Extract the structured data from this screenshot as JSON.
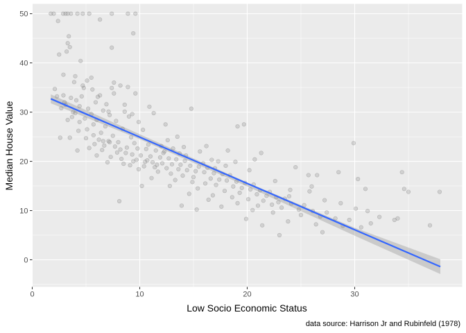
{
  "chart_data": {
    "type": "scatter",
    "title": "",
    "xlabel": "Low Socio Economic Status",
    "ylabel": "Median House Value",
    "caption": "data source: Harrison Jr and Rubinfeld (1978)",
    "xlim": [
      0,
      40
    ],
    "ylim": [
      -5.5,
      52
    ],
    "xticks": [
      0,
      10,
      20,
      30
    ],
    "yticks": [
      0,
      10,
      20,
      30,
      40,
      50
    ],
    "grid": true,
    "legend": "none",
    "colors": {
      "panel_background": "#ebebeb",
      "grid_major": "#ffffff",
      "point": "#7f7f7f",
      "fit_line": "#3366ff",
      "confidence_band": "#999999"
    },
    "fit_line": {
      "x": [
        1.73,
        37.97
      ],
      "y": [
        32.7,
        -1.4
      ],
      "se_band": {
        "x": [
          1.73,
          10,
          20,
          30,
          37.97
        ],
        "lower": [
          31.8,
          24.5,
          14.9,
          4.9,
          -2.9
        ],
        "upper": [
          33.6,
          25.5,
          15.7,
          6.5,
          0.1
        ]
      }
    },
    "points": [
      [
        1.73,
        50
      ],
      [
        2.0,
        50
      ],
      [
        2.87,
        50
      ],
      [
        3.1,
        50
      ],
      [
        3.3,
        50
      ],
      [
        3.6,
        50
      ],
      [
        4.2,
        50
      ],
      [
        4.7,
        50
      ],
      [
        5.3,
        50
      ],
      [
        7.4,
        50
      ],
      [
        8.9,
        50
      ],
      [
        9.6,
        50
      ],
      [
        2.4,
        48.5
      ],
      [
        3.4,
        45.4
      ],
      [
        3.3,
        44.0
      ],
      [
        3.5,
        43.2
      ],
      [
        3.2,
        42.3
      ],
      [
        7.4,
        43.1
      ],
      [
        2.5,
        41.7
      ],
      [
        6.3,
        48.8
      ],
      [
        9.4,
        46.0
      ],
      [
        4.5,
        40.4
      ],
      [
        2.9,
        37.6
      ],
      [
        4.0,
        37.3
      ],
      [
        5.1,
        36.4
      ],
      [
        7.6,
        36.0
      ],
      [
        8.2,
        35.4
      ],
      [
        4.8,
        34.9
      ],
      [
        2.1,
        34.7
      ],
      [
        5.6,
        34.6
      ],
      [
        7.4,
        34.9
      ],
      [
        9.6,
        33.8
      ],
      [
        2.9,
        33.4
      ],
      [
        4.6,
        33.2
      ],
      [
        6.1,
        33.1
      ],
      [
        3.6,
        32.9
      ],
      [
        4.1,
        32.4
      ],
      [
        5.9,
        32.0
      ],
      [
        6.9,
        31.6
      ],
      [
        3.1,
        31.5
      ],
      [
        4.4,
        31.2
      ],
      [
        2.7,
        30.8
      ],
      [
        5.2,
        30.7
      ],
      [
        6.6,
        30.3
      ],
      [
        8.6,
        30.1
      ],
      [
        4.0,
        29.8
      ],
      [
        5.5,
        29.6
      ],
      [
        7.2,
        29.4
      ],
      [
        9.0,
        29.1
      ],
      [
        3.7,
        29.0
      ],
      [
        4.9,
        28.7
      ],
      [
        6.0,
        28.4
      ],
      [
        7.8,
        28.2
      ],
      [
        9.9,
        28.0
      ],
      [
        3.3,
        28.4
      ],
      [
        5.7,
        27.5
      ],
      [
        6.8,
        27.1
      ],
      [
        8.4,
        26.6
      ],
      [
        10.3,
        26.4
      ],
      [
        4.3,
        26.2
      ],
      [
        6.4,
        25.8
      ],
      [
        7.5,
        25.2
      ],
      [
        9.2,
        24.9
      ],
      [
        5.0,
        24.7
      ],
      [
        6.2,
        24.4
      ],
      [
        7.1,
        24.1
      ],
      [
        8.0,
        23.9
      ],
      [
        9.5,
        23.7
      ],
      [
        10.8,
        23.4
      ],
      [
        3.5,
        24.8
      ],
      [
        5.8,
        23.5
      ],
      [
        6.7,
        23.2
      ],
      [
        7.7,
        23.0
      ],
      [
        8.8,
        22.8
      ],
      [
        9.8,
        22.6
      ],
      [
        10.6,
        22.5
      ],
      [
        11.5,
        22.2
      ],
      [
        12.3,
        22.0
      ],
      [
        5.3,
        22.7
      ],
      [
        6.5,
        22.3
      ],
      [
        7.9,
        21.8
      ],
      [
        8.7,
        21.7
      ],
      [
        9.3,
        21.4
      ],
      [
        10.1,
        21.2
      ],
      [
        11.0,
        21.0
      ],
      [
        11.9,
        20.8
      ],
      [
        12.7,
        20.6
      ],
      [
        13.4,
        20.4
      ],
      [
        14.2,
        20.1
      ],
      [
        6.0,
        21.2
      ],
      [
        7.3,
        20.9
      ],
      [
        8.3,
        20.5
      ],
      [
        9.7,
        20.3
      ],
      [
        10.5,
        19.9
      ],
      [
        11.2,
        19.8
      ],
      [
        12.1,
        19.6
      ],
      [
        13.0,
        19.4
      ],
      [
        13.8,
        19.3
      ],
      [
        14.7,
        19.1
      ],
      [
        15.5,
        18.9
      ],
      [
        16.3,
        18.7
      ],
      [
        7.0,
        19.8
      ],
      [
        8.5,
        19.5
      ],
      [
        9.1,
        19.2
      ],
      [
        10.4,
        19.0
      ],
      [
        11.4,
        18.8
      ],
      [
        12.5,
        18.6
      ],
      [
        13.6,
        18.4
      ],
      [
        14.4,
        18.2
      ],
      [
        15.2,
        18.0
      ],
      [
        16.0,
        17.8
      ],
      [
        16.9,
        17.6
      ],
      [
        17.7,
        17.4
      ],
      [
        18.4,
        17.2
      ],
      [
        9.9,
        18.4
      ],
      [
        11.7,
        17.9
      ],
      [
        12.9,
        17.5
      ],
      [
        14.0,
        17.1
      ],
      [
        15.0,
        16.8
      ],
      [
        16.6,
        16.5
      ],
      [
        17.4,
        16.3
      ],
      [
        18.1,
        16.1
      ],
      [
        19.0,
        15.9
      ],
      [
        19.8,
        15.6
      ],
      [
        20.6,
        15.3
      ],
      [
        11.1,
        16.6
      ],
      [
        13.3,
        16.2
      ],
      [
        14.9,
        15.8
      ],
      [
        16.1,
        15.5
      ],
      [
        17.1,
        15.2
      ],
      [
        18.7,
        14.9
      ],
      [
        19.5,
        14.6
      ],
      [
        20.3,
        14.3
      ],
      [
        21.2,
        14.1
      ],
      [
        22.1,
        13.8
      ],
      [
        12.8,
        15.0
      ],
      [
        15.4,
        14.5
      ],
      [
        17.9,
        14.0
      ],
      [
        19.3,
        13.6
      ],
      [
        20.9,
        13.3
      ],
      [
        21.8,
        13.0
      ],
      [
        22.7,
        12.7
      ],
      [
        23.5,
        12.4
      ],
      [
        14.6,
        13.4
      ],
      [
        16.8,
        13.1
      ],
      [
        18.6,
        12.7
      ],
      [
        20.1,
        12.3
      ],
      [
        21.5,
        12.0
      ],
      [
        22.9,
        11.7
      ],
      [
        24.1,
        11.4
      ],
      [
        25.3,
        11.1
      ],
      [
        16.4,
        12.2
      ],
      [
        19.1,
        11.5
      ],
      [
        21.0,
        11.0
      ],
      [
        23.2,
        10.6
      ],
      [
        24.8,
        10.2
      ],
      [
        26.1,
        9.9
      ],
      [
        27.4,
        9.6
      ],
      [
        17.6,
        10.8
      ],
      [
        20.5,
        10.1
      ],
      [
        22.4,
        9.6
      ],
      [
        25.0,
        9.1
      ],
      [
        26.8,
        8.8
      ],
      [
        28.2,
        8.4
      ],
      [
        29.5,
        8.1
      ],
      [
        19.9,
        8.3
      ],
      [
        23.8,
        7.8
      ],
      [
        26.4,
        7.2
      ],
      [
        28.9,
        6.9
      ],
      [
        30.6,
        6.6
      ],
      [
        31.5,
        7.4
      ],
      [
        21.4,
        7.0
      ],
      [
        27.0,
        5.6
      ],
      [
        23.0,
        5.0
      ],
      [
        34.0,
        8.4
      ],
      [
        37.0,
        7.0
      ],
      [
        2.6,
        24.8
      ],
      [
        4.2,
        22.2
      ],
      [
        8.1,
        11.9
      ],
      [
        10.2,
        15.0
      ],
      [
        15.3,
        10.2
      ],
      [
        13.9,
        11.0
      ],
      [
        26.5,
        17.2
      ],
      [
        28.5,
        17.8
      ],
      [
        29.9,
        23.7
      ],
      [
        31.0,
        14.4
      ],
      [
        34.4,
        17.8
      ],
      [
        34.6,
        14.4
      ],
      [
        35.0,
        13.8
      ],
      [
        37.9,
        13.8
      ],
      [
        25.7,
        17.2
      ],
      [
        30.3,
        16.4
      ],
      [
        24.5,
        18.8
      ],
      [
        20.7,
        20.4
      ],
      [
        21.3,
        21.7
      ],
      [
        19.7,
        27.5
      ],
      [
        19.1,
        27.1
      ],
      [
        17.3,
        20.0
      ],
      [
        16.2,
        23.1
      ],
      [
        18.2,
        22.2
      ],
      [
        14.8,
        30.7
      ],
      [
        13.5,
        25.0
      ],
      [
        12.4,
        27.5
      ],
      [
        11.3,
        29.8
      ],
      [
        10.9,
        31.1
      ],
      [
        9.3,
        29.6
      ],
      [
        8.6,
        31.5
      ],
      [
        7.1,
        30.1
      ],
      [
        5.5,
        37.0
      ],
      [
        4.7,
        35.4
      ],
      [
        3.9,
        36.1
      ],
      [
        2.3,
        33.2
      ],
      [
        6.3,
        33.4
      ],
      [
        7.6,
        33.8
      ],
      [
        8.9,
        35.1
      ],
      [
        12.0,
        23.1
      ],
      [
        12.6,
        24.3
      ],
      [
        13.1,
        22.6
      ],
      [
        14.1,
        22.9
      ],
      [
        15.6,
        22.0
      ],
      [
        16.7,
        20.3
      ],
      [
        18.0,
        19.1
      ],
      [
        18.9,
        19.9
      ],
      [
        11.6,
        19.3
      ],
      [
        10.7,
        20.2
      ],
      [
        9.4,
        20.0
      ],
      [
        8.2,
        22.4
      ],
      [
        7.2,
        23.9
      ],
      [
        6.6,
        24.1
      ],
      [
        5.7,
        25.3
      ],
      [
        5.1,
        26.5
      ],
      [
        4.4,
        28.0
      ],
      [
        3.8,
        30.0
      ],
      [
        3.0,
        32.0
      ],
      [
        22.6,
        16.0
      ],
      [
        24.0,
        14.2
      ],
      [
        25.8,
        13.9
      ],
      [
        27.2,
        12.1
      ],
      [
        28.7,
        11.5
      ],
      [
        30.1,
        10.4
      ],
      [
        31.2,
        9.9
      ],
      [
        32.3,
        8.7
      ],
      [
        33.7,
        8.1
      ],
      [
        22.3,
        11.2
      ],
      [
        23.9,
        12.9
      ],
      [
        26.0,
        14.9
      ],
      [
        20.2,
        18.2
      ],
      [
        17.0,
        18.6
      ],
      [
        15.9,
        19.6
      ],
      [
        14.3,
        21.2
      ],
      [
        13.7,
        21.6
      ],
      [
        12.2,
        21.7
      ]
    ]
  }
}
